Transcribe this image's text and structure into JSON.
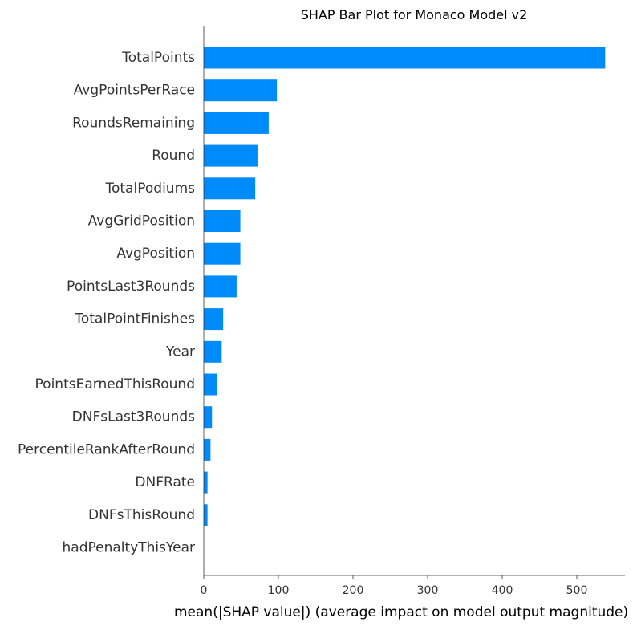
{
  "chart_data": {
    "type": "bar",
    "orientation": "horizontal",
    "title": "SHAP Bar Plot for Monaco Model v2",
    "xlabel": "mean(|SHAP value|) (average impact on model output magnitude)",
    "ylabel": "",
    "xlim": [
      0,
      560
    ],
    "xticks": [
      0,
      100,
      200,
      300,
      400,
      500
    ],
    "grid": false,
    "bar_color": "#008bfb",
    "categories": [
      "TotalPoints",
      "AvgPointsPerRace",
      "RoundsRemaining",
      "Round",
      "TotalPodiums",
      "AvgGridPosition",
      "AvgPosition",
      "PointsLast3Rounds",
      "TotalPointFinishes",
      "Year",
      "PointsEarnedThisRound",
      "DNFsLast3Rounds",
      "PercentileRankAfterRound",
      "DNFRate",
      "DNFsThisRound",
      "hadPenaltyThisYear"
    ],
    "values": [
      538,
      98,
      87,
      72,
      69,
      49,
      49,
      44,
      26,
      24,
      18,
      11,
      9,
      5,
      5,
      0
    ]
  }
}
